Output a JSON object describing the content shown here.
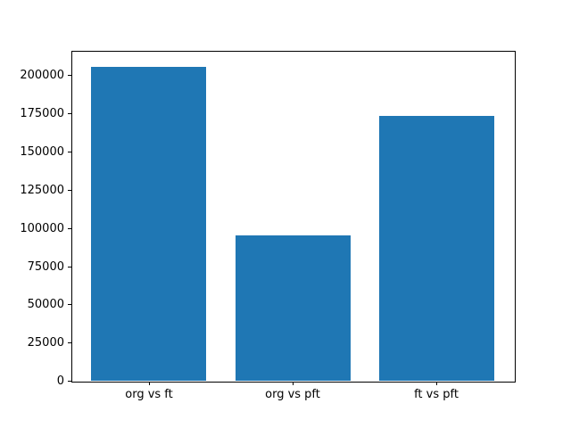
{
  "chart_data": {
    "type": "bar",
    "title": "",
    "xlabel": "",
    "ylabel": "",
    "categories": [
      "org vs ft",
      "org vs pft",
      "ft vs pft"
    ],
    "values": [
      205500,
      95000,
      173500
    ],
    "yticks": [
      0,
      25000,
      50000,
      75000,
      100000,
      125000,
      150000,
      175000,
      200000
    ],
    "ytick_labels": [
      "0",
      "25000",
      "50000",
      "75000",
      "100000",
      "125000",
      "150000",
      "175000",
      "200000"
    ],
    "ylim": [
      0,
      216000
    ],
    "grid": false,
    "legend_position": "none",
    "bar_color": "#1f77b4",
    "frame_color": "#000000",
    "text_color": "#000000",
    "background_color": "#ffffff"
  }
}
